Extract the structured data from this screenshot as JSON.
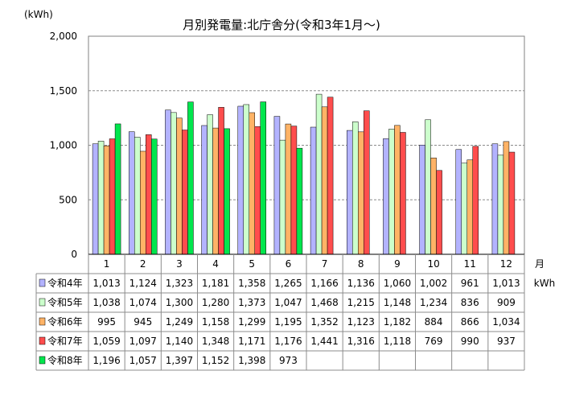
{
  "chart_data": {
    "type": "bar",
    "title": "月別発電量:北庁舎分(令和3年1月～)",
    "ylabel": "(kWh)",
    "xlabel": "月",
    "table_unit": "kWh",
    "ylim": [
      0,
      2000
    ],
    "yticks": [
      "0",
      "500",
      "1,000",
      "1,500",
      "2,000"
    ],
    "ytick_values": [
      0,
      500,
      1000,
      1500,
      2000
    ],
    "grid": true,
    "categories": [
      "1",
      "2",
      "3",
      "4",
      "5",
      "6",
      "7",
      "8",
      "9",
      "10",
      "11",
      "12"
    ],
    "series": [
      {
        "name": "令和4年",
        "color": "#b3b3ff",
        "values": [
          1013,
          1124,
          1323,
          1181,
          1358,
          1265,
          1166,
          1136,
          1060,
          1002,
          961,
          1013
        ],
        "labels": [
          "1,013",
          "1,124",
          "1,323",
          "1,181",
          "1,358",
          "1,265",
          "1,166",
          "1,136",
          "1,060",
          "1,002",
          "961",
          "1,013"
        ]
      },
      {
        "name": "令和5年",
        "color": "#ccffcc",
        "values": [
          1038,
          1074,
          1300,
          1280,
          1373,
          1047,
          1468,
          1215,
          1148,
          1234,
          836,
          909
        ],
        "labels": [
          "1,038",
          "1,074",
          "1,300",
          "1,280",
          "1,373",
          "1,047",
          "1,468",
          "1,215",
          "1,148",
          "1,234",
          "836",
          "909"
        ]
      },
      {
        "name": "令和6年",
        "color": "#ffb366",
        "values": [
          995,
          945,
          1249,
          1158,
          1299,
          1195,
          1352,
          1123,
          1182,
          884,
          866,
          1034
        ],
        "labels": [
          "995",
          "945",
          "1,249",
          "1,158",
          "1,299",
          "1,195",
          "1,352",
          "1,123",
          "1,182",
          "884",
          "866",
          "1,034"
        ]
      },
      {
        "name": "令和7年",
        "color": "#ff4d4d",
        "values": [
          1059,
          1097,
          1140,
          1348,
          1171,
          1176,
          1441,
          1316,
          1118,
          769,
          990,
          937
        ],
        "labels": [
          "1,059",
          "1,097",
          "1,140",
          "1,348",
          "1,171",
          "1,176",
          "1,441",
          "1,316",
          "1,118",
          "769",
          "990",
          "937"
        ]
      },
      {
        "name": "令和8年",
        "color": "#00e64d",
        "values": [
          1196,
          1057,
          1397,
          1152,
          1398,
          973,
          null,
          null,
          null,
          null,
          null,
          null
        ],
        "labels": [
          "1,196",
          "1,057",
          "1,397",
          "1,152",
          "1,398",
          "973",
          "",
          "",
          "",
          "",
          "",
          ""
        ]
      }
    ]
  }
}
